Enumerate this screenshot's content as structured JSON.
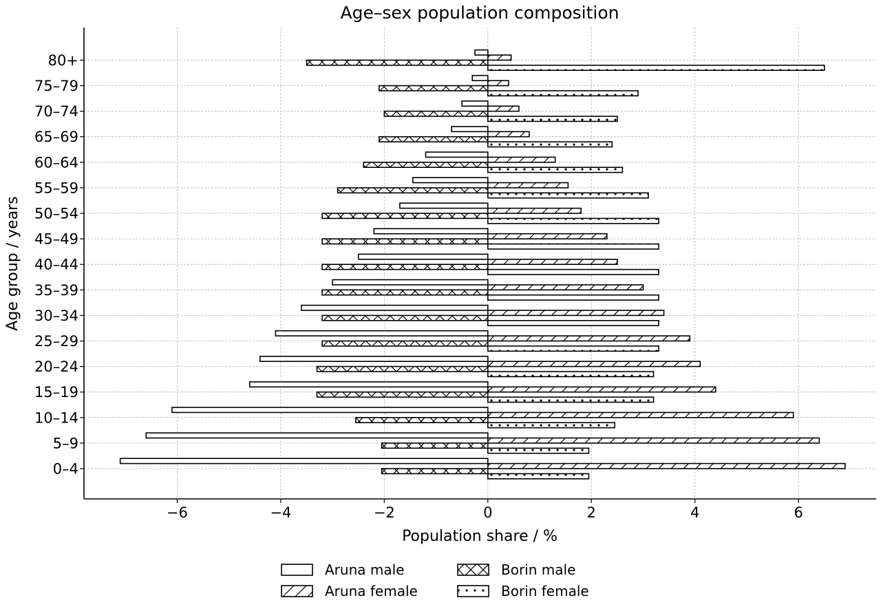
{
  "chart_data": {
    "type": "bar",
    "orientation": "horizontal",
    "title": "Age–sex population composition",
    "xlabel": "Population share / %",
    "ylabel": "Age group / years",
    "xlim": [
      -7.8,
      7.5
    ],
    "xticks": [
      -6,
      -4,
      -2,
      0,
      2,
      4,
      6
    ],
    "xtick_labels": [
      "−6",
      "−4",
      "−2",
      "0",
      "2",
      "4",
      "6"
    ],
    "grid": true,
    "legend_position": "bottom-center",
    "categories": [
      "0–4",
      "5–9",
      "10–14",
      "15–19",
      "20–24",
      "25–29",
      "30–34",
      "35–39",
      "40–44",
      "45–49",
      "50–54",
      "55–59",
      "60–64",
      "65–69",
      "70–74",
      "75–79",
      "80+"
    ],
    "series": [
      {
        "name": "Aruna male",
        "pattern": "none",
        "values": [
          -7.1,
          -6.6,
          -6.1,
          -4.6,
          -4.4,
          -4.1,
          -3.6,
          -3.0,
          -2.5,
          -2.2,
          -1.7,
          -1.45,
          -1.2,
          -0.7,
          -0.5,
          -0.3,
          -0.25
        ]
      },
      {
        "name": "Aruna female",
        "pattern": "diagonal",
        "values": [
          6.9,
          6.4,
          5.9,
          4.4,
          4.1,
          3.9,
          3.4,
          3.0,
          2.5,
          2.3,
          1.8,
          1.55,
          1.3,
          0.8,
          0.6,
          0.4,
          0.45
        ]
      },
      {
        "name": "Borin male",
        "pattern": "crosshatch",
        "values": [
          -2.05,
          -2.05,
          -2.55,
          -3.3,
          -3.3,
          -3.2,
          -3.2,
          -3.2,
          -3.2,
          -3.2,
          -3.2,
          -2.9,
          -2.4,
          -2.1,
          -2.0,
          -2.1,
          -3.5
        ]
      },
      {
        "name": "Borin female",
        "pattern": "dots",
        "values": [
          1.95,
          1.95,
          2.45,
          3.2,
          3.2,
          3.3,
          3.3,
          3.3,
          3.3,
          3.3,
          3.3,
          3.1,
          2.6,
          2.4,
          2.5,
          2.9,
          6.5
        ]
      }
    ]
  }
}
